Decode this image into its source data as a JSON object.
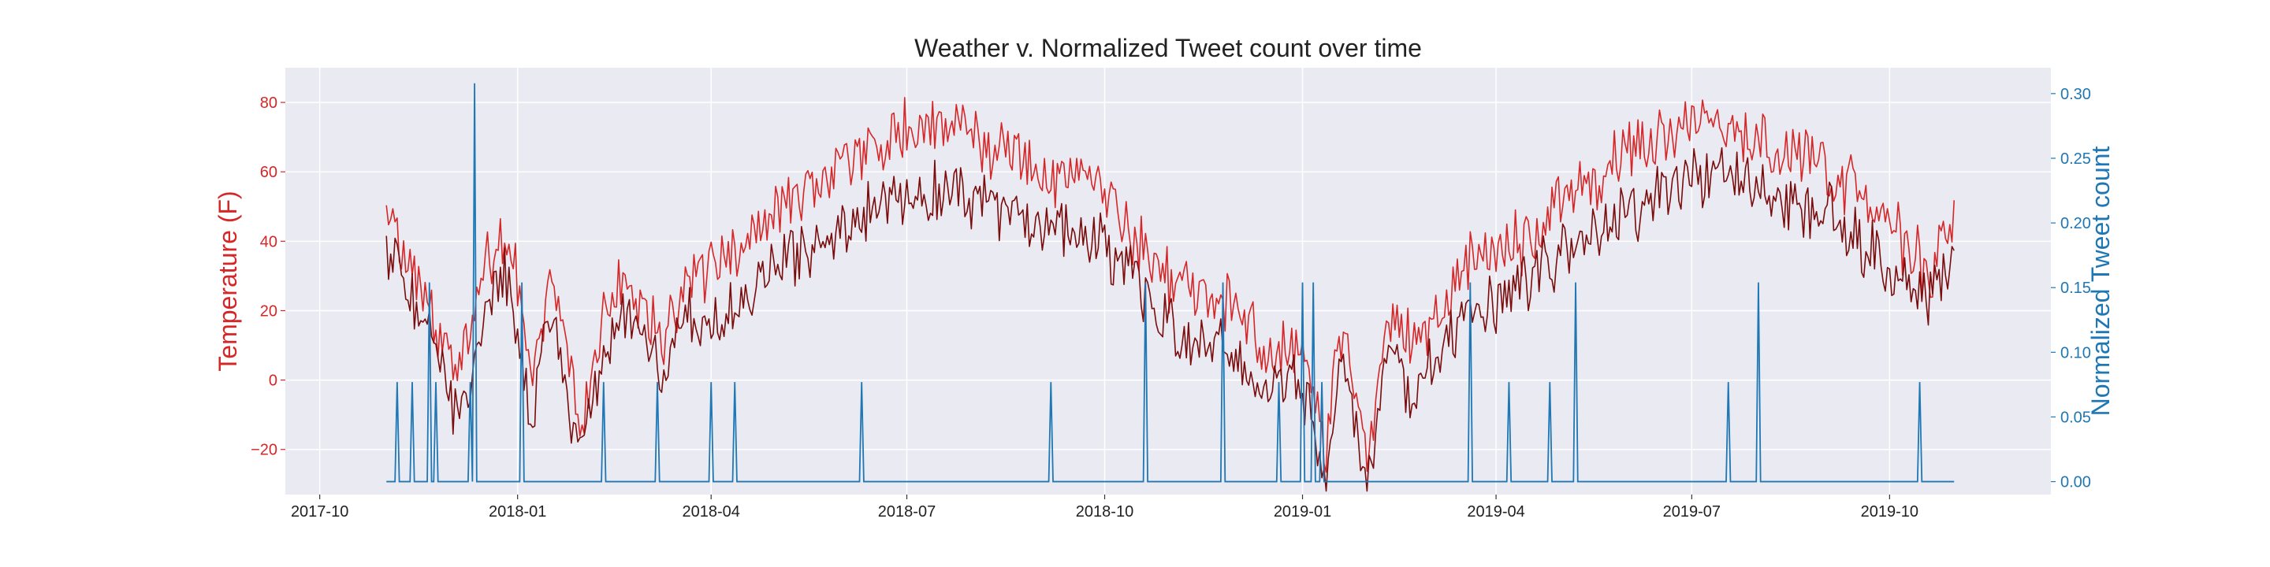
{
  "chart_data": {
    "type": "line",
    "title": "Weather v. Normalized Tweet count over time",
    "ylabel_left": "Temperature (F)",
    "ylabel_right": "Normalized Tweet count",
    "xlabel": "",
    "x_start": "2017-11-01",
    "x_end": "2019-10-31",
    "xlim": [
      "2017-09-15",
      "2019-12-15"
    ],
    "ylim_left": [
      -33,
      90
    ],
    "ylim_right": [
      -0.01,
      0.32
    ],
    "x_tick_labels": [
      {
        "date": "2017-10-01",
        "label": "2017-10"
      },
      {
        "date": "2018-01-01",
        "label": "2018-01"
      },
      {
        "date": "2018-04-01",
        "label": "2018-04"
      },
      {
        "date": "2018-07-01",
        "label": "2018-07"
      },
      {
        "date": "2018-10-01",
        "label": "2018-10"
      },
      {
        "date": "2019-01-01",
        "label": "2019-01"
      },
      {
        "date": "2019-04-01",
        "label": "2019-04"
      },
      {
        "date": "2019-07-01",
        "label": "2019-07"
      },
      {
        "date": "2019-10-01",
        "label": "2019-10"
      }
    ],
    "y_left_ticks": [
      -20,
      0,
      20,
      40,
      60,
      80
    ],
    "y_left_tick_labels": [
      "−20",
      "0",
      "20",
      "40",
      "60",
      "80"
    ],
    "y_right_ticks": [
      0.0,
      0.05,
      0.1,
      0.15,
      0.2,
      0.25,
      0.3
    ],
    "y_right_tick_labels": [
      "0.00",
      "0.05",
      "0.10",
      "0.15",
      "0.20",
      "0.25",
      "0.30"
    ],
    "grid": true,
    "colors": {
      "high_temp": "#d62728",
      "low_temp": "#7a0c0c",
      "tweets": "#1f77b4",
      "left_axis": "#d62728",
      "right_axis": "#1f77b4",
      "background": "#eaeaf2",
      "grid": "#ffffff"
    },
    "series": [
      {
        "key": "high_temp",
        "role": "temperature-high",
        "anchors": [
          [
            "2017-11-01",
            44
          ],
          [
            "2017-11-08",
            38
          ],
          [
            "2017-11-15",
            28
          ],
          [
            "2017-11-22",
            18
          ],
          [
            "2017-12-01",
            6
          ],
          [
            "2017-12-08",
            8
          ],
          [
            "2017-12-15",
            30
          ],
          [
            "2017-12-22",
            38
          ],
          [
            "2017-12-28",
            42
          ],
          [
            "2018-01-03",
            22
          ],
          [
            "2018-01-08",
            -5
          ],
          [
            "2018-01-15",
            30
          ],
          [
            "2018-01-22",
            20
          ],
          [
            "2018-01-30",
            -20
          ],
          [
            "2018-02-06",
            10
          ],
          [
            "2018-02-14",
            25
          ],
          [
            "2018-02-22",
            30
          ],
          [
            "2018-03-01",
            22
          ],
          [
            "2018-03-10",
            10
          ],
          [
            "2018-03-20",
            30
          ],
          [
            "2018-04-01",
            30
          ],
          [
            "2018-04-12",
            38
          ],
          [
            "2018-04-25",
            45
          ],
          [
            "2018-05-10",
            52
          ],
          [
            "2018-05-25",
            58
          ],
          [
            "2018-06-10",
            65
          ],
          [
            "2018-06-25",
            72
          ],
          [
            "2018-07-05",
            70
          ],
          [
            "2018-07-20",
            78
          ],
          [
            "2018-08-01",
            70
          ],
          [
            "2018-08-15",
            66
          ],
          [
            "2018-09-01",
            60
          ],
          [
            "2018-09-15",
            60
          ],
          [
            "2018-10-01",
            55
          ],
          [
            "2018-10-10",
            45
          ],
          [
            "2018-10-20",
            38
          ],
          [
            "2018-11-01",
            28
          ],
          [
            "2018-11-15",
            24
          ],
          [
            "2018-11-25",
            24
          ],
          [
            "2018-12-05",
            18
          ],
          [
            "2018-12-15",
            5
          ],
          [
            "2018-12-25",
            10
          ],
          [
            "2019-01-05",
            2
          ],
          [
            "2019-01-12",
            -20
          ],
          [
            "2019-01-20",
            20
          ],
          [
            "2019-01-31",
            -25
          ],
          [
            "2019-02-10",
            22
          ],
          [
            "2019-02-20",
            10
          ],
          [
            "2019-03-01",
            15
          ],
          [
            "2019-03-15",
            30
          ],
          [
            "2019-04-01",
            38
          ],
          [
            "2019-04-15",
            40
          ],
          [
            "2019-05-01",
            50
          ],
          [
            "2019-05-15",
            58
          ],
          [
            "2019-06-01",
            65
          ],
          [
            "2019-06-15",
            70
          ],
          [
            "2019-07-01",
            75
          ],
          [
            "2019-07-15",
            74
          ],
          [
            "2019-08-01",
            68
          ],
          [
            "2019-08-15",
            65
          ],
          [
            "2019-09-01",
            62
          ],
          [
            "2019-09-15",
            55
          ],
          [
            "2019-10-01",
            45
          ],
          [
            "2019-10-10",
            38
          ],
          [
            "2019-10-20",
            30
          ],
          [
            "2019-10-31",
            50
          ]
        ]
      },
      {
        "key": "low_temp",
        "role": "temperature-low",
        "anchors": [
          [
            "2017-11-01",
            36
          ],
          [
            "2017-11-08",
            28
          ],
          [
            "2017-11-15",
            20
          ],
          [
            "2017-11-22",
            12
          ],
          [
            "2017-12-01",
            -5
          ],
          [
            "2017-12-08",
            -8
          ],
          [
            "2017-12-15",
            15
          ],
          [
            "2017-12-22",
            25
          ],
          [
            "2017-12-28",
            30
          ],
          [
            "2018-01-03",
            8
          ],
          [
            "2018-01-08",
            -10
          ],
          [
            "2018-01-15",
            18
          ],
          [
            "2018-01-22",
            5
          ],
          [
            "2018-01-30",
            -25
          ],
          [
            "2018-02-06",
            -5
          ],
          [
            "2018-02-14",
            12
          ],
          [
            "2018-02-22",
            18
          ],
          [
            "2018-03-01",
            12
          ],
          [
            "2018-03-10",
            0
          ],
          [
            "2018-03-20",
            18
          ],
          [
            "2018-04-01",
            15
          ],
          [
            "2018-04-12",
            22
          ],
          [
            "2018-04-25",
            30
          ],
          [
            "2018-05-10",
            35
          ],
          [
            "2018-05-25",
            42
          ],
          [
            "2018-06-10",
            45
          ],
          [
            "2018-06-25",
            55
          ],
          [
            "2018-07-05",
            52
          ],
          [
            "2018-07-20",
            58
          ],
          [
            "2018-08-01",
            52
          ],
          [
            "2018-08-15",
            48
          ],
          [
            "2018-09-01",
            46
          ],
          [
            "2018-09-15",
            42
          ],
          [
            "2018-10-01",
            40
          ],
          [
            "2018-10-10",
            32
          ],
          [
            "2018-10-20",
            25
          ],
          [
            "2018-11-01",
            15
          ],
          [
            "2018-11-15",
            12
          ],
          [
            "2018-11-25",
            12
          ],
          [
            "2018-12-05",
            5
          ],
          [
            "2018-12-15",
            -5
          ],
          [
            "2018-12-25",
            0
          ],
          [
            "2019-01-05",
            -10
          ],
          [
            "2019-01-12",
            -28
          ],
          [
            "2019-01-20",
            5
          ],
          [
            "2019-01-31",
            -32
          ],
          [
            "2019-02-10",
            10
          ],
          [
            "2019-02-20",
            -5
          ],
          [
            "2019-03-01",
            5
          ],
          [
            "2019-03-15",
            18
          ],
          [
            "2019-04-01",
            22
          ],
          [
            "2019-04-15",
            28
          ],
          [
            "2019-05-01",
            35
          ],
          [
            "2019-05-15",
            42
          ],
          [
            "2019-06-01",
            48
          ],
          [
            "2019-06-15",
            52
          ],
          [
            "2019-07-01",
            58
          ],
          [
            "2019-07-15",
            60
          ],
          [
            "2019-08-01",
            55
          ],
          [
            "2019-08-15",
            50
          ],
          [
            "2019-09-01",
            48
          ],
          [
            "2019-09-15",
            42
          ],
          [
            "2019-10-01",
            30
          ],
          [
            "2019-10-10",
            28
          ],
          [
            "2019-10-20",
            24
          ],
          [
            "2019-10-31",
            36
          ]
        ]
      },
      {
        "key": "tweets",
        "role": "tweet-count",
        "baseline": 0.0,
        "spikes": [
          [
            "2017-11-06",
            0.077
          ],
          [
            "2017-11-13",
            0.077
          ],
          [
            "2017-11-21",
            0.154
          ],
          [
            "2017-11-24",
            0.077
          ],
          [
            "2017-12-10",
            0.077
          ],
          [
            "2017-12-12",
            0.308
          ],
          [
            "2018-01-03",
            0.154
          ],
          [
            "2018-02-10",
            0.077
          ],
          [
            "2018-03-07",
            0.077
          ],
          [
            "2018-04-01",
            0.077
          ],
          [
            "2018-04-12",
            0.077
          ],
          [
            "2018-06-10",
            0.077
          ],
          [
            "2018-09-06",
            0.077
          ],
          [
            "2018-10-20",
            0.154
          ],
          [
            "2018-11-25",
            0.154
          ],
          [
            "2018-12-21",
            0.077
          ],
          [
            "2019-01-01",
            0.154
          ],
          [
            "2019-01-06",
            0.154
          ],
          [
            "2019-01-10",
            0.077
          ],
          [
            "2019-03-20",
            0.154
          ],
          [
            "2019-04-07",
            0.077
          ],
          [
            "2019-04-26",
            0.077
          ],
          [
            "2019-05-08",
            0.154
          ],
          [
            "2019-07-18",
            0.077
          ],
          [
            "2019-08-01",
            0.154
          ],
          [
            "2019-10-15",
            0.077
          ]
        ]
      }
    ]
  }
}
